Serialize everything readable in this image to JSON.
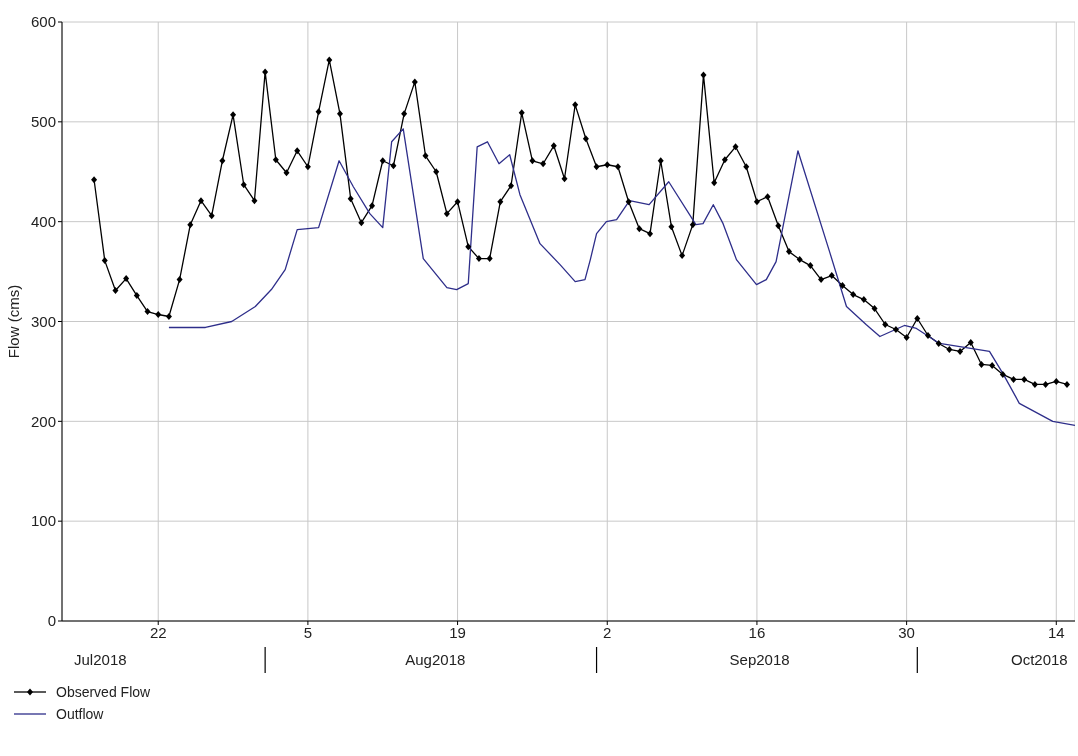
{
  "chart_data": {
    "type": "line",
    "ylabel": "Flow (cms)",
    "xlim": [
      "2018-07-13",
      "2018-10-15T18:00"
    ],
    "xticks": [
      {
        "value": "2018-07-22",
        "label": "22"
      },
      {
        "value": "2018-08-05",
        "label": "5"
      },
      {
        "value": "2018-08-19",
        "label": "19"
      },
      {
        "value": "2018-09-02",
        "label": "2"
      },
      {
        "value": "2018-09-16",
        "label": "16"
      },
      {
        "value": "2018-09-30",
        "label": "30"
      },
      {
        "value": "2018-10-14",
        "label": "14"
      }
    ],
    "x2lim": [
      "2018-07-13",
      "2018-10-15T18:00"
    ],
    "x2ticks": [
      {
        "value": "2018-07-16T14:00",
        "label": "Jul2018"
      },
      {
        "value": "2018-08-16T22:00",
        "label": "Aug2018"
      },
      {
        "value": "2018-09-16T06:00",
        "label": "Sep2018"
      },
      {
        "value": "2018-10-12T10:00",
        "label": "Oct2018"
      }
    ],
    "ylim": [
      0,
      600
    ],
    "yticks": [
      0,
      100,
      200,
      300,
      400,
      500,
      600
    ],
    "grid": true,
    "legend": "bottom left",
    "series": [
      {
        "name": "Observed Flow",
        "color": "#000000",
        "marker": "diamond",
        "x": [
          "2018-07-16",
          "2018-07-17",
          "2018-07-18",
          "2018-07-19",
          "2018-07-20",
          "2018-07-21",
          "2018-07-22",
          "2018-07-23",
          "2018-07-24",
          "2018-07-25",
          "2018-07-26",
          "2018-07-27",
          "2018-07-28",
          "2018-07-29",
          "2018-07-30",
          "2018-07-31",
          "2018-08-01",
          "2018-08-02",
          "2018-08-03",
          "2018-08-04",
          "2018-08-05",
          "2018-08-06",
          "2018-08-07",
          "2018-08-08",
          "2018-08-09",
          "2018-08-10",
          "2018-08-11",
          "2018-08-12",
          "2018-08-13",
          "2018-08-14",
          "2018-08-15",
          "2018-08-16",
          "2018-08-17",
          "2018-08-18",
          "2018-08-19",
          "2018-08-20",
          "2018-08-21",
          "2018-08-22",
          "2018-08-23",
          "2018-08-24",
          "2018-08-25",
          "2018-08-26",
          "2018-08-27",
          "2018-08-28",
          "2018-08-29",
          "2018-08-30",
          "2018-08-31",
          "2018-09-01",
          "2018-09-02",
          "2018-09-03",
          "2018-09-04",
          "2018-09-05",
          "2018-09-06",
          "2018-09-07",
          "2018-09-08",
          "2018-09-09",
          "2018-09-10",
          "2018-09-11",
          "2018-09-12",
          "2018-09-13",
          "2018-09-14",
          "2018-09-15",
          "2018-09-16",
          "2018-09-17",
          "2018-09-18",
          "2018-09-19",
          "2018-09-20",
          "2018-09-21",
          "2018-09-22",
          "2018-09-23",
          "2018-09-24",
          "2018-09-25",
          "2018-09-26",
          "2018-09-27",
          "2018-09-28",
          "2018-09-29",
          "2018-09-30",
          "2018-10-01",
          "2018-10-02",
          "2018-10-03",
          "2018-10-04",
          "2018-10-05",
          "2018-10-06",
          "2018-10-07",
          "2018-10-08",
          "2018-10-09",
          "2018-10-10",
          "2018-10-11",
          "2018-10-12",
          "2018-10-13",
          "2018-10-14",
          "2018-10-15"
        ],
        "values": [
          442,
          361,
          331,
          343,
          326,
          310,
          307,
          305,
          342,
          397,
          421,
          406,
          461,
          507,
          437,
          421,
          550,
          462,
          449,
          471,
          455,
          510,
          562,
          508,
          423,
          399,
          416,
          461,
          456,
          508,
          540,
          466,
          450,
          408,
          420,
          375,
          363,
          363,
          420,
          436,
          509,
          461,
          458,
          476,
          443,
          517,
          483,
          455,
          457,
          455,
          420,
          393,
          388,
          461,
          395,
          366,
          397,
          547,
          439,
          462,
          475,
          455,
          420,
          425,
          396,
          370,
          362,
          356,
          342,
          346,
          336,
          327,
          322,
          313,
          297,
          292,
          284,
          303,
          286,
          278,
          272,
          270,
          279,
          257,
          256,
          247,
          242,
          242,
          237,
          237,
          240,
          237
        ]
      },
      {
        "name": "Outflow",
        "color": "#2e2e8a",
        "marker": "none",
        "x": [
          "2018-07-23",
          "2018-07-26T10:00",
          "2018-07-28T21:00",
          "2018-07-31T02:00",
          "2018-08-01T14:00",
          "2018-08-02T21:00",
          "2018-08-04",
          "2018-08-06",
          "2018-08-07T22:00",
          "2018-08-09T06:00",
          "2018-08-10T19:00",
          "2018-08-12",
          "2018-08-12T20:00",
          "2018-08-13T22:00",
          "2018-08-15T19:00",
          "2018-08-18",
          "2018-08-18T22:00",
          "2018-08-20",
          "2018-08-20T20:00",
          "2018-08-21T19:00",
          "2018-08-22T21:00",
          "2018-08-23T21:00",
          "2018-08-24T20:00",
          "2018-08-26T17:00",
          "2018-08-28T14:00",
          "2018-08-30",
          "2018-08-30T22:00",
          "2018-08-31T10:00",
          "2018-09-01",
          "2018-09-01T22:00",
          "2018-09-02T21:00",
          "2018-09-04T02:00",
          "2018-09-05T22:00",
          "2018-09-07T18:00",
          "2018-09-10T07:00",
          "2018-09-10T23:00",
          "2018-09-11T22:00",
          "2018-09-12T20:00",
          "2018-09-14T02:00",
          "2018-09-15T23:00",
          "2018-09-16T21:00",
          "2018-09-17T19:00",
          "2018-09-19T20:00",
          "2018-09-22T19:00",
          "2018-09-24T09:00",
          "2018-09-26T05:00",
          "2018-09-27T12:00",
          "2018-09-29T19:00",
          "2018-09-30T22:00",
          "2018-10-03T02:00",
          "2018-10-07T18:00",
          "2018-10-09",
          "2018-10-10T13:00",
          "2018-10-13T16:00",
          "2018-10-15T18:00"
        ],
        "values": [
          294,
          294,
          300,
          315,
          332,
          352,
          392,
          394,
          461,
          435,
          408,
          394,
          480,
          493,
          363,
          334,
          332,
          338,
          475,
          480,
          458,
          467,
          427,
          378,
          357,
          340,
          342,
          362,
          388,
          400,
          402,
          421,
          417,
          440,
          397,
          398,
          417,
          398,
          362,
          337,
          342,
          360,
          471,
          370,
          315,
          297,
          285,
          296,
          293,
          278,
          270,
          248,
          218,
          200,
          196
        ]
      }
    ]
  }
}
